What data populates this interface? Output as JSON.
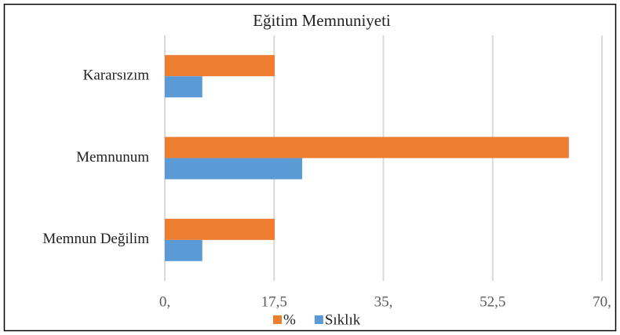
{
  "chart_data": {
    "type": "hbar",
    "title": "Eğitim Memnuniyeti",
    "categories": [
      "Kararsızım",
      "Memnunum",
      "Memnun Değilim"
    ],
    "series": [
      {
        "name": "%",
        "color": "#ed7d31",
        "values": [
          17.6,
          64.7,
          17.6
        ]
      },
      {
        "name": "Sıklık",
        "color": "#5b9bd5",
        "values": [
          6,
          22,
          6
        ]
      }
    ],
    "xlim": [
      0,
      70
    ],
    "xticks": [
      {
        "value": 0,
        "label": "0,"
      },
      {
        "value": 17.5,
        "label": "17,5"
      },
      {
        "value": 35,
        "label": "35,"
      },
      {
        "value": 52.5,
        "label": "52,5"
      },
      {
        "value": 70,
        "label": "70,"
      }
    ],
    "grid": true,
    "legend": "bottom"
  }
}
